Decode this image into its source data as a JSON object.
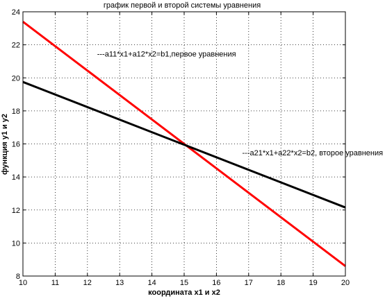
{
  "chart_data": {
    "type": "line",
    "title": "график первой и второй системы уравнения",
    "xlabel": "координата x1 и x2",
    "ylabel": "функция y1 и y2",
    "xlim": [
      10,
      20
    ],
    "ylim": [
      8,
      24
    ],
    "xticks": [
      10,
      11,
      12,
      13,
      14,
      15,
      16,
      17,
      18,
      19,
      20
    ],
    "yticks": [
      8,
      10,
      12,
      14,
      16,
      18,
      20,
      22,
      24
    ],
    "grid": true,
    "series": [
      {
        "name": "---a11*x1+a12*x2=b1,первое уравнения",
        "color": "#ff0000",
        "x": [
          10,
          20
        ],
        "y": [
          23.4,
          8.6
        ]
      },
      {
        "name": "---a21*x1+a22*x2=b2, второе уравнения",
        "color": "#000000",
        "x": [
          10,
          20
        ],
        "y": [
          19.75,
          12.15
        ]
      }
    ],
    "annotations": [
      {
        "text": "---a11*x1+a12*x2=b1,первое уравнения",
        "x": 12.3,
        "y": 21.3
      },
      {
        "text": "---a21*x1+a22*x2=b2, второе уравнения",
        "x": 16.8,
        "y": 15.3
      }
    ]
  }
}
